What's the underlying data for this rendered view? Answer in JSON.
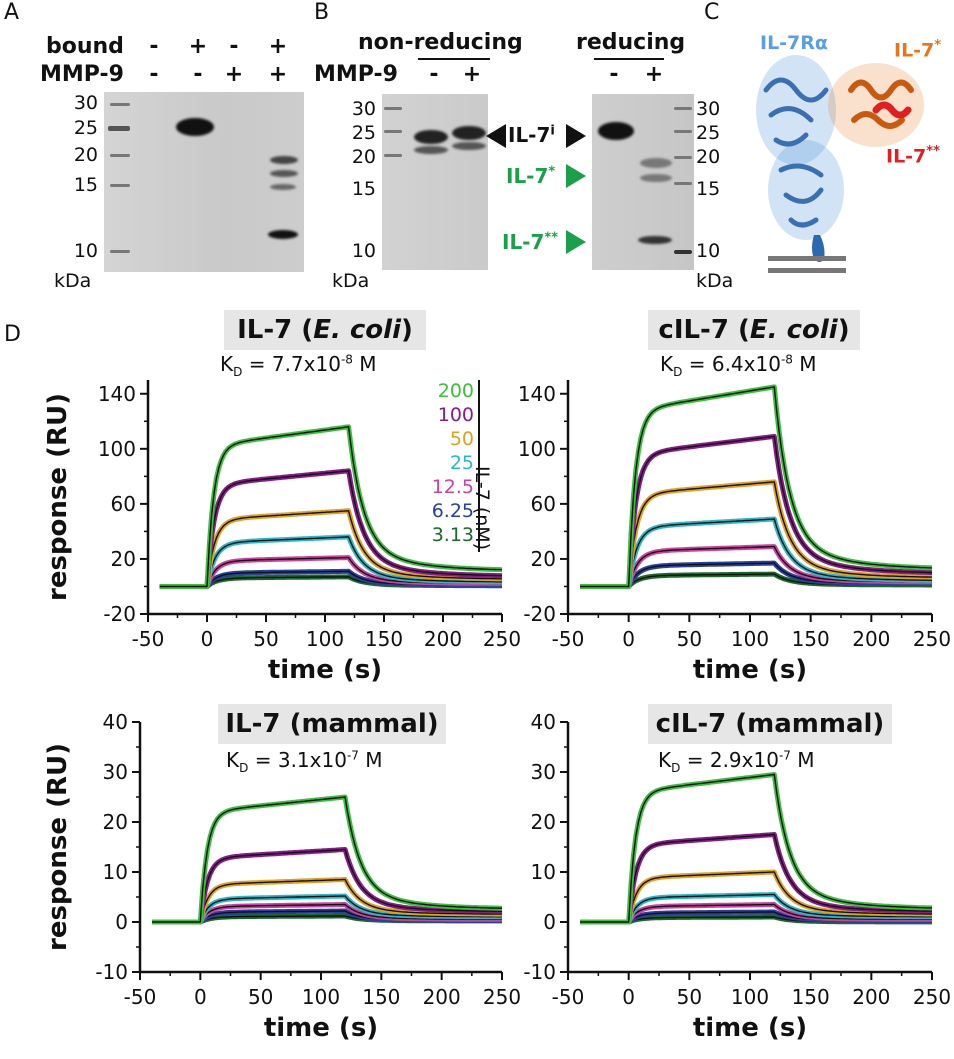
{
  "panel_labels": {
    "a": "A",
    "b": "B",
    "c": "C",
    "d": "D"
  },
  "panel_a": {
    "row1_label": "bound",
    "row1_marks": [
      "-",
      "+",
      "-",
      "+"
    ],
    "row2_label": "MMP-9",
    "row2_marks": [
      "-",
      "-",
      "+",
      "+"
    ],
    "mw_markers": [
      "30",
      "25",
      "20",
      "15",
      "10"
    ],
    "unit": "kDa"
  },
  "panel_b": {
    "left_header": "non-reducing",
    "right_header": "reducing",
    "mmp_label": "MMP-9",
    "left_marks": [
      "-",
      "+"
    ],
    "right_marks": [
      "-",
      "+"
    ],
    "mw_markers": [
      "30",
      "25",
      "20",
      "15",
      "10"
    ],
    "unit": "kDa",
    "arrow_intact": "IL-7",
    "arrow_intact_sup": "i",
    "arrow_star": "IL-7",
    "arrow_star_sup": "*",
    "arrow_dstar": "IL-7",
    "arrow_dstar_sup": "**",
    "colors": {
      "black": "#111111",
      "green": "#1aa04a"
    }
  },
  "panel_c": {
    "receptor": "IL-7Rα",
    "frag1": "IL-7",
    "frag1_sup": "*",
    "frag2": "IL-7",
    "frag2_sup": "**",
    "colors": {
      "receptor": "#4a8fd6",
      "frag1": "#e8751a",
      "frag2": "#e02020"
    }
  },
  "legend": {
    "title": "IL-7 (nM)",
    "entries": [
      {
        "label": "200",
        "color": "#3cbf3c"
      },
      {
        "label": "100",
        "color": "#8a1a8a"
      },
      {
        "label": "50",
        "color": "#e0a020"
      },
      {
        "label": "25",
        "color": "#2ab8c8"
      },
      {
        "label": "12.5",
        "color": "#d040a0"
      },
      {
        "label": "6.25",
        "color": "#2840a0"
      },
      {
        "label": "3.13",
        "color": "#1a6a2a"
      }
    ]
  },
  "chart_data": [
    {
      "type": "line",
      "id": "ecoli_il7",
      "title": "IL-7 (E. coli)",
      "title_main": "IL-7 (",
      "title_italic": "E. coli",
      "title_end": ")",
      "kd_prefix": "K",
      "kd_sub": "D",
      "kd_value": " = 7.7x10",
      "kd_exp": "-8",
      "kd_unit": " M",
      "xlabel": "time (s)",
      "ylabel": "response (RU)",
      "xlim": [
        -50,
        250
      ],
      "ylim": [
        -20,
        150
      ],
      "xticks": [
        -50,
        0,
        50,
        100,
        150,
        200,
        250
      ],
      "yticks": [
        -20,
        20,
        60,
        100,
        140
      ],
      "injection_start": 0,
      "injection_end": 120,
      "series_plateaus": [
        116,
        84,
        55,
        36,
        21,
        11,
        7
      ],
      "series_final": [
        11,
        7,
        5,
        3,
        2,
        1,
        0.5
      ]
    },
    {
      "type": "line",
      "id": "ecoli_cil7",
      "title": "cIL-7 (E. coli)",
      "title_main": "cIL-7 (",
      "title_italic": "E. coli",
      "title_end": ")",
      "kd_prefix": "K",
      "kd_sub": "D",
      "kd_value": " = 6.4x10",
      "kd_exp": "-8",
      "kd_unit": " M",
      "xlabel": "time (s)",
      "ylabel": "",
      "xlim": [
        -50,
        250
      ],
      "ylim": [
        -20,
        150
      ],
      "xticks": [
        -50,
        0,
        50,
        100,
        150,
        200,
        250
      ],
      "yticks": [
        -20,
        20,
        60,
        100,
        140
      ],
      "injection_start": 0,
      "injection_end": 120,
      "series_plateaus": [
        145,
        109,
        76,
        49,
        29,
        17,
        9
      ],
      "series_final": [
        12,
        9,
        6,
        4,
        3,
        2,
        1
      ]
    },
    {
      "type": "line",
      "id": "mammal_il7",
      "title": "IL-7 (mammal)",
      "title_main": "IL-7 (mammal)",
      "title_italic": "",
      "title_end": "",
      "kd_prefix": "K",
      "kd_sub": "D",
      "kd_value": " = 3.1x10",
      "kd_exp": "-7",
      "kd_unit": " M",
      "xlabel": "time (s)",
      "ylabel": "response (RU)",
      "xlim": [
        -50,
        250
      ],
      "ylim": [
        -10,
        40
      ],
      "xticks": [
        -50,
        0,
        50,
        100,
        150,
        200,
        250
      ],
      "yticks": [
        -10,
        0,
        10,
        20,
        30,
        40
      ],
      "injection_start": 0,
      "injection_end": 120,
      "series_plateaus": [
        25,
        14.5,
        8.5,
        5.2,
        3.5,
        2.2,
        1.2
      ],
      "series_final": [
        2.5,
        2,
        1.5,
        1,
        0.5,
        0.3,
        0.2
      ]
    },
    {
      "type": "line",
      "id": "mammal_cil7",
      "title": "cIL-7 (mammal)",
      "title_main": "cIL-7 (mammal)",
      "title_italic": "",
      "title_end": "",
      "kd_prefix": "K",
      "kd_sub": "D",
      "kd_value": " = 2.9x10",
      "kd_exp": "-7",
      "kd_unit": " M",
      "xlabel": "time (s)",
      "ylabel": "",
      "xlim": [
        -50,
        250
      ],
      "ylim": [
        -10,
        40
      ],
      "xticks": [
        -50,
        0,
        50,
        100,
        150,
        200,
        250
      ],
      "yticks": [
        -10,
        0,
        10,
        20,
        30,
        40
      ],
      "injection_start": 0,
      "injection_end": 120,
      "series_plateaus": [
        29.5,
        17.5,
        10,
        5.5,
        3.5,
        2,
        1
      ],
      "series_final": [
        2.5,
        2,
        1.5,
        1,
        0.5,
        0.3,
        0
      ]
    }
  ]
}
